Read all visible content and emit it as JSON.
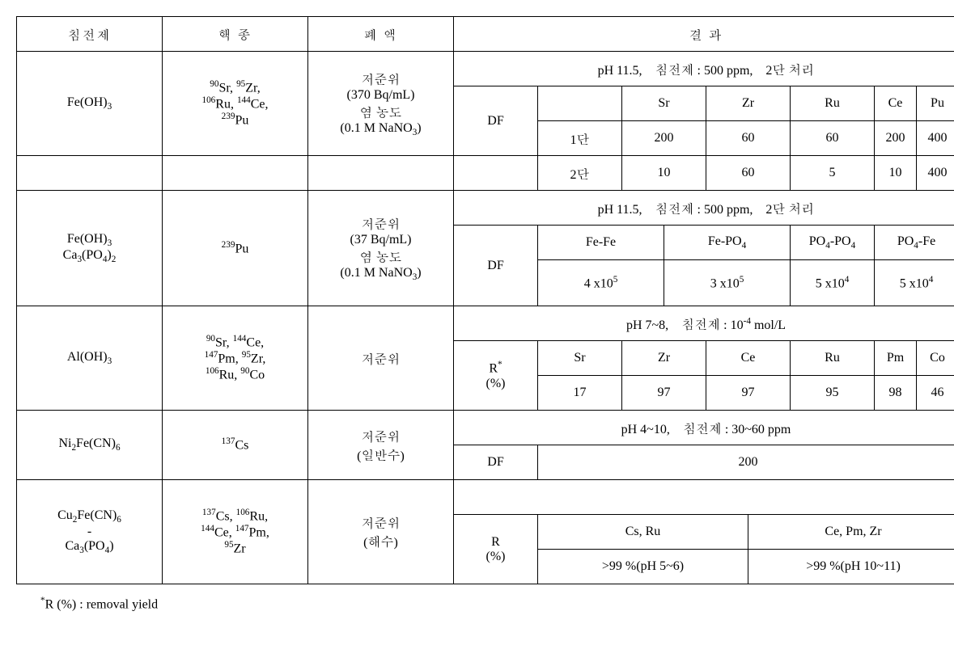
{
  "headers": {
    "precipitant": "침전제",
    "nuclide": "핵 종",
    "waste": "폐 액",
    "result": "결 과"
  },
  "row1": {
    "precipitant_html": "Fe(OH)<sub>3</sub>",
    "nuclide_html": "<sup>90</sup>Sr, <sup>95</sup>Zr,<br><sup>106</sup>Ru, <sup>144</sup>Ce,<br><sup>239</sup>Pu",
    "waste_html": "저준위<br>(370 Bq/mL)<br>염 농도<br>(0.1 M NaNO<sub>3</sub>)",
    "condition": "pH 11.5,　침전제 : 500 ppm,　2단 처리",
    "df_label": "DF",
    "cols": [
      "",
      "Sr",
      "Zr",
      "Ru",
      "Ce",
      "Pu"
    ],
    "r1_label": "1단",
    "r1_vals": [
      "200",
      "60",
      "60",
      "200",
      "400"
    ],
    "r2_label": "2단",
    "r2_vals": [
      "10",
      "60",
      "5",
      "10",
      "400"
    ]
  },
  "row2": {
    "precipitant_html": "Fe(OH)<sub>3</sub><br>Ca<sub>3</sub>(PO<sub>4</sub>)<sub>2</sub>",
    "nuclide_html": "<sup>239</sup>Pu",
    "waste_html": "저준위<br>(37 Bq/mL)<br>염 농도<br>(0.1 M NaNO<sub>3</sub>)",
    "condition": "pH 11.5,　침전제 : 500 ppm,　2단 처리",
    "df_label": "DF",
    "cols": [
      "Fe-Fe",
      "Fe-PO<sub>4</sub>",
      "PO<sub>4</sub>-PO<sub>4</sub>",
      "PO<sub>4</sub>-Fe"
    ],
    "vals": [
      "4 x10<sup>5</sup>",
      "3 x10<sup>5</sup>",
      "5 x10<sup>4</sup>",
      "5 x10<sup>4</sup>"
    ]
  },
  "row3": {
    "precipitant_html": "Al(OH)<sub>3</sub>",
    "nuclide_html": "<sup>90</sup>Sr, <sup>144</sup>Ce,<br><sup>147</sup>Pm, <sup>95</sup>Zr,<br><sup>106</sup>Ru, <sup>90</sup>Co",
    "waste_html": "저준위",
    "condition_html": "pH 7~8,　침전제 : 10<sup>-4</sup> mol/L",
    "r_label_html": "R<sup>*</sup><br>(%)",
    "cols": [
      "Sr",
      "Zr",
      "Ce",
      "Ru",
      "Pm",
      "Co"
    ],
    "vals": [
      "17",
      "97",
      "97",
      "95",
      "98",
      "46"
    ]
  },
  "row4": {
    "precipitant_html": "Ni<sub>2</sub>Fe(CN)<sub>6</sub>",
    "nuclide_html": "<sup>137</sup>Cs",
    "waste_html": "저준위<br>(일반수)",
    "condition": "pH 4~10,　침전제 : 30~60 ppm",
    "df_label": "DF",
    "val": "200"
  },
  "row5": {
    "precipitant_html": "Cu<sub>2</sub>Fe(CN)<sub>6</sub><br>-<br>Ca<sub>3</sub>(PO<sub>4</sub>)",
    "nuclide_html": "<sup>137</sup>Cs, <sup>106</sup>Ru,<br><sup>144</sup>Ce, <sup>147</sup>Pm,<br><sup>95</sup>Zr",
    "waste_html": "저준위<br>(해수)",
    "r_label_html": "R<br>(%)",
    "col1": "Cs, Ru",
    "col2": "Ce, Pm, Zr",
    "val1": ">99 %(pH 5~6)",
    "val2": ">99 %(pH 10~11)"
  },
  "footnote_html": "<sup>*</sup>R (%) : removal yield"
}
